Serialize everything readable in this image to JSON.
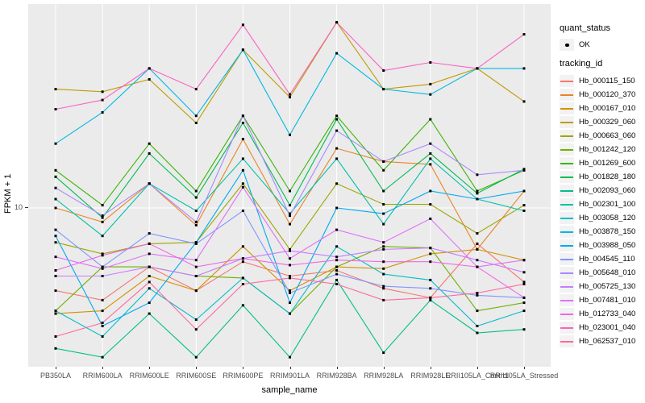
{
  "figure": {
    "y_axis": {
      "title": "FPKM + 1",
      "tick_label": "10"
    },
    "x_axis": {
      "title": "sample_name"
    },
    "legend": {
      "quant_status": {
        "title": "quant_status",
        "items": [
          {
            "label": "OK",
            "marker": "black-point"
          }
        ]
      },
      "tracking_id": {
        "title": "tracking_id"
      }
    },
    "colors": {
      "panel_background": "#EBEBEB",
      "gridline": "#FFFFFF",
      "axis_text": "#4D4D4D",
      "marker": "#000000",
      "legend_key_background": "#F2F2F2"
    }
  },
  "chart_data": {
    "type": "line",
    "title": "",
    "xlabel": "sample_name",
    "ylabel": "FPKM + 1",
    "y_scale": "log10",
    "y_ticks": [
      10
    ],
    "ylim_log10": [
      0.25,
      1.95
    ],
    "grid": "vertical-major-plus-y10",
    "legend_position": "right",
    "marker": "small-black-square",
    "categories": [
      "PB350LA",
      "RRIM600LA",
      "RRIM600LE",
      "RRIM600SE",
      "RRIM600PE",
      "RRIM901LA",
      "RRIM928BA",
      "RRIM928LA",
      "RRIM928LE",
      "RRII105LA_Control",
      "RRII105LA_Stressed"
    ],
    "series": [
      {
        "name": "Hb_000115_150",
        "color": "#F8766D",
        "values": [
          4.1,
          3.7,
          5.3,
          4.1,
          5.6,
          4.8,
          5.1,
          4.2,
          3.8,
          6.8,
          4.5
        ]
      },
      {
        "name": "Hb_000120_370",
        "color": "#E88526",
        "values": [
          10,
          8.6,
          13,
          8.3,
          21,
          8.4,
          19,
          16.5,
          16,
          6.4,
          12
        ]
      },
      {
        "name": "Hb_000167_010",
        "color": "#D39200",
        "values": [
          3.2,
          3.3,
          4.8,
          4.1,
          6.6,
          4.1,
          5.3,
          5.2,
          6.1,
          6.4,
          5.7
        ]
      },
      {
        "name": "Hb_000329_060",
        "color": "#BE9C00",
        "values": [
          36,
          35,
          40,
          25,
          55,
          33,
          74,
          36,
          38,
          45,
          31.5
        ]
      },
      {
        "name": "Hb_000663_060",
        "color": "#9CA700",
        "values": [
          6.9,
          6.1,
          6.8,
          6.9,
          13,
          6.4,
          13,
          10.4,
          10.4,
          7.6,
          10.3
        ]
      },
      {
        "name": "Hb_001242_120",
        "color": "#6FB000",
        "values": [
          3.3,
          5.3,
          5.3,
          4.8,
          4.7,
          3.2,
          5.3,
          6.6,
          6.5,
          3.3,
          3.6
        ]
      },
      {
        "name": "Hb_001269_600",
        "color": "#39B600",
        "values": [
          15,
          10.3,
          20,
          12,
          27,
          12,
          27,
          15,
          26,
          12,
          15
        ]
      },
      {
        "name": "Hb_001828_180",
        "color": "#00BC51",
        "values": [
          14,
          9,
          18,
          11.2,
          25,
          10.3,
          26,
          12,
          18,
          11.7,
          15.2
        ]
      },
      {
        "name": "Hb_002093_060",
        "color": "#00C087",
        "values": [
          2.2,
          2,
          3.2,
          2,
          3.5,
          2,
          4.6,
          2.1,
          3.7,
          2.6,
          2.7
        ]
      },
      {
        "name": "Hb_002301_100",
        "color": "#00C1AA",
        "values": [
          11,
          7.4,
          13,
          9.7,
          17,
          9.4,
          17,
          8.4,
          17,
          11,
          9.7
        ]
      },
      {
        "name": "Hb_003058_120",
        "color": "#00BDC9",
        "values": [
          3.3,
          2.5,
          4.2,
          3,
          4.7,
          3.2,
          6.6,
          4.9,
          4.6,
          2.8,
          3.3
        ]
      },
      {
        "name": "Hb_003878_150",
        "color": "#00B8E3",
        "values": [
          20,
          28,
          45,
          27,
          55,
          22,
          53,
          36,
          34,
          45,
          45
        ]
      },
      {
        "name": "Hb_003988_050",
        "color": "#00A9F2",
        "values": [
          7.4,
          2.8,
          3.6,
          6.9,
          15,
          3.6,
          10,
          9.4,
          12,
          11,
          12
        ]
      },
      {
        "name": "Hb_004545_110",
        "color": "#7F96FF",
        "values": [
          7.9,
          5.3,
          7.6,
          6.8,
          9.7,
          4,
          4.9,
          4.3,
          4.2,
          3.9,
          3.8
        ]
      },
      {
        "name": "Hb_005648_010",
        "color": "#A888FF",
        "values": [
          12.4,
          9.2,
          13,
          8.6,
          27,
          9.2,
          23,
          16.5,
          20,
          14.3,
          15
        ]
      },
      {
        "name": "Hb_005725_130",
        "color": "#C77CFF",
        "values": [
          4.8,
          4.8,
          5.3,
          4.8,
          5.8,
          6.3,
          5.9,
          6.4,
          6.5,
          5.7,
          5
        ]
      },
      {
        "name": "Hb_007481_010",
        "color": "#DF70F8",
        "values": [
          5.9,
          5.2,
          6.1,
          5.7,
          12.5,
          5.8,
          7.9,
          6.9,
          8.9,
          5.3,
          5.7
        ]
      },
      {
        "name": "Hb_012733_040",
        "color": "#F166E8",
        "values": [
          5.1,
          6,
          6.8,
          5.3,
          5.8,
          5.4,
          5.7,
          5.6,
          5.6,
          5.3,
          3.8
        ]
      },
      {
        "name": "Hb_023001_040",
        "color": "#FC61C1",
        "values": [
          29,
          32,
          45,
          36,
          72,
          34,
          74,
          44,
          48,
          45,
          65
        ]
      },
      {
        "name": "Hb_062537_010",
        "color": "#FF689F",
        "values": [
          2.5,
          2.9,
          4.5,
          2.7,
          4.4,
          4.7,
          4.4,
          3.7,
          3.8,
          4,
          4.4
        ]
      }
    ]
  }
}
